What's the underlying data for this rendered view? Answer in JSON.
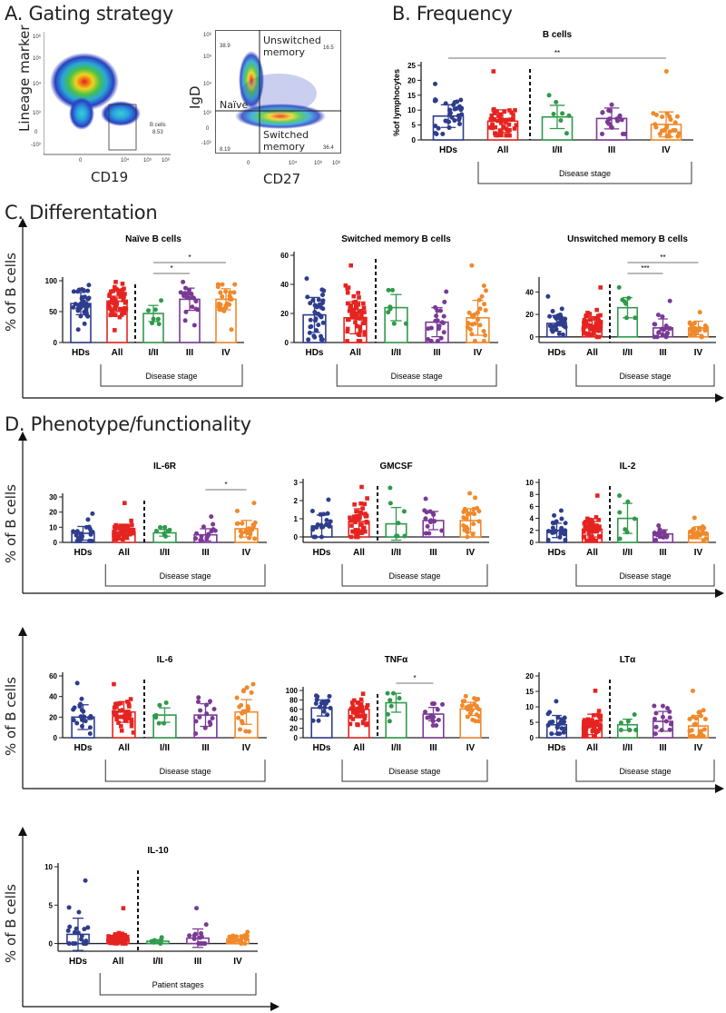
{
  "panel_a": {
    "title": "A. Gating strategy",
    "plot1": {
      "xlabel": "CD19",
      "ylabel": "Lineage marker",
      "gate_label": "B cells",
      "gate_value": "8.53",
      "xticks": [
        "0",
        "10⁴",
        "10⁵",
        "10⁶"
      ],
      "yticks": [
        "10⁶",
        "10⁵",
        "10⁴",
        "10³",
        "0",
        "-10³"
      ]
    },
    "plot2": {
      "xlabel": "CD27",
      "ylabel": "IgD",
      "naive_label": "Naïve",
      "ul_value": "38.9",
      "ur_label": "Unswitched memory",
      "ur_value": "16.5",
      "ll_value": "8.19",
      "lr_label": "Switched memory",
      "lr_value": "36.4",
      "xticks": [
        "0",
        "10⁴",
        "10⁵",
        "10⁶"
      ],
      "yticks": [
        "10⁶",
        "10⁵",
        "10⁴",
        "10³",
        "0",
        "-10³"
      ]
    }
  },
  "panel_b": {
    "title": "B. Frequency"
  },
  "panel_c": {
    "title": "C. Differentation",
    "ylabel": "% of B cells"
  },
  "panel_d": {
    "title": "D. Phenotype/functionality",
    "ylabel": "% of B cells"
  },
  "colors": {
    "HDs": "#2e3d8c",
    "All": "#e52421",
    "I/II": "#2f9a4b",
    "III": "#7a3a94",
    "IV": "#f0892b"
  },
  "chart_data": [
    {
      "id": "bcells",
      "type": "bar",
      "title": "B cells",
      "ylabel": "%of lymphocytes",
      "ylim": [
        0,
        25
      ],
      "yticks": [
        0,
        5,
        10,
        15,
        20,
        25
      ],
      "categories": [
        "HDs",
        "All",
        "I/II",
        "III",
        "IV"
      ],
      "means": [
        8,
        6.3,
        7.7,
        7.2,
        5.2
      ],
      "sd": [
        3.8,
        3.8,
        3.9,
        3.5,
        4.2
      ],
      "n": [
        34,
        50,
        7,
        20,
        25
      ],
      "min": [
        2,
        1.5,
        2.2,
        2,
        1.2
      ],
      "max": [
        18.8,
        23,
        15,
        11.8,
        23
      ],
      "bracket": "Disease stage",
      "significance": [
        {
          "from": 0,
          "to": 4,
          "label": "**"
        }
      ]
    },
    {
      "id": "naive",
      "type": "bar",
      "title": "Naïve B cells",
      "ylim": [
        0,
        100
      ],
      "yticks": [
        0,
        50,
        100
      ],
      "categories": [
        "HDs",
        "All",
        "I/II",
        "III",
        "IV"
      ],
      "means": [
        63,
        67,
        47,
        70,
        70
      ],
      "sd": [
        18,
        17,
        13,
        18,
        17
      ],
      "n": [
        34,
        55,
        7,
        20,
        26
      ],
      "min": [
        21,
        20,
        30,
        28,
        21
      ],
      "max": [
        93,
        98,
        68,
        98,
        94
      ],
      "bracket": "Disease stage",
      "significance": [
        {
          "from": 2,
          "to": 3,
          "label": "*"
        },
        {
          "from": 2,
          "to": 4,
          "label": "*"
        }
      ]
    },
    {
      "id": "switched",
      "type": "bar",
      "title": "Switched memory B cells",
      "ylim": [
        0,
        60
      ],
      "yticks": [
        0,
        20,
        40,
        60
      ],
      "categories": [
        "HDs",
        "All",
        "I/II",
        "III",
        "IV"
      ],
      "means": [
        19,
        17,
        24,
        14,
        17
      ],
      "sd": [
        12,
        11,
        9,
        10,
        12
      ],
      "n": [
        34,
        55,
        7,
        20,
        26
      ],
      "min": [
        2,
        1,
        13,
        1,
        1
      ],
      "max": [
        44,
        53,
        36,
        35,
        53
      ],
      "bracket": "Disease stage",
      "significance": []
    },
    {
      "id": "unswitched",
      "type": "bar",
      "title": "Unswitched memory B cells",
      "ylim": [
        -5,
        50
      ],
      "yticks": [
        0,
        20,
        40
      ],
      "categories": [
        "HDs",
        "All",
        "I/II",
        "III",
        "IV"
      ],
      "means": [
        12,
        10,
        26,
        8,
        8
      ],
      "sd": [
        7,
        8,
        9,
        8,
        6
      ],
      "n": [
        34,
        55,
        7,
        20,
        26
      ],
      "min": [
        2,
        0,
        17,
        0,
        0
      ],
      "max": [
        36,
        44,
        44,
        32,
        22
      ],
      "bracket": "Disease stage",
      "significance": [
        {
          "from": 2,
          "to": 3,
          "label": "***"
        },
        {
          "from": 2,
          "to": 4,
          "label": "**"
        }
      ]
    },
    {
      "id": "il6r",
      "type": "bar",
      "title": "IL-6R",
      "ylim": [
        0,
        30
      ],
      "yticks": [
        0,
        10,
        20,
        30
      ],
      "categories": [
        "HDs",
        "All",
        "I/II",
        "III",
        "IV"
      ],
      "means": [
        6,
        7,
        6.3,
        5,
        9
      ],
      "sd": [
        4.5,
        5,
        2.2,
        4,
        5.5
      ],
      "n": [
        22,
        45,
        7,
        14,
        22
      ],
      "min": [
        1,
        2,
        4,
        1.5,
        2.5
      ],
      "max": [
        19,
        26,
        10,
        17,
        26
      ],
      "bracket": "Disease stage",
      "significance": [
        {
          "from": 3,
          "to": 4,
          "label": "*"
        }
      ]
    },
    {
      "id": "gmcsf",
      "type": "bar",
      "title": "GMCSF",
      "ylim": [
        -0.3,
        3
      ],
      "yticks": [
        0,
        1,
        2,
        3
      ],
      "categories": [
        "HDs",
        "All",
        "I/II",
        "III",
        "IV"
      ],
      "means": [
        0.6,
        0.85,
        0.72,
        0.9,
        0.9
      ],
      "sd": [
        0.6,
        0.7,
        0.9,
        0.5,
        0.65
      ],
      "n": [
        22,
        45,
        7,
        14,
        24
      ],
      "min": [
        0,
        0,
        0.05,
        0.2,
        0
      ],
      "max": [
        2.05,
        2.75,
        2.7,
        2.1,
        2.4
      ],
      "bracket": "Disease stage",
      "significance": []
    },
    {
      "id": "il2",
      "type": "bar",
      "title": "IL-2",
      "ylim": [
        0,
        10
      ],
      "yticks": [
        0,
        2,
        4,
        6,
        8,
        10
      ],
      "categories": [
        "HDs",
        "All",
        "I/II",
        "III",
        "IV"
      ],
      "means": [
        2,
        2.2,
        4,
        1.4,
        1.6
      ],
      "sd": [
        1.2,
        1.3,
        2.5,
        0.7,
        1
      ],
      "n": [
        22,
        45,
        7,
        14,
        24
      ],
      "min": [
        0.4,
        0.3,
        0.6,
        0.4,
        0.3
      ],
      "max": [
        5.3,
        7.8,
        7.8,
        2.8,
        4.1
      ],
      "bracket": "Disease stage",
      "significance": []
    },
    {
      "id": "il6",
      "type": "bar",
      "title": "IL-6",
      "ylim": [
        0,
        60
      ],
      "yticks": [
        0,
        20,
        40,
        60
      ],
      "categories": [
        "HDs",
        "All",
        "I/II",
        "III",
        "IV"
      ],
      "means": [
        20,
        25,
        22,
        22,
        25
      ],
      "sd": [
        12,
        10,
        7,
        11,
        12
      ],
      "n": [
        20,
        42,
        7,
        14,
        22
      ],
      "min": [
        4,
        5,
        14,
        4,
        6
      ],
      "max": [
        53,
        52,
        34,
        39,
        52
      ],
      "bracket": "Disease stage",
      "significance": []
    },
    {
      "id": "tnfa",
      "type": "bar",
      "title": "TNFα",
      "ylim": [
        0,
        100
      ],
      "yticks": [
        0,
        20,
        40,
        60,
        80,
        100
      ],
      "categories": [
        "HDs",
        "All",
        "I/II",
        "III",
        "IV"
      ],
      "means": [
        63,
        60,
        74,
        50,
        61
      ],
      "sd": [
        17,
        17,
        20,
        14,
        14
      ],
      "n": [
        20,
        45,
        7,
        14,
        24
      ],
      "min": [
        36,
        27,
        35,
        26,
        35
      ],
      "max": [
        89,
        93,
        94,
        72,
        88
      ],
      "bracket": "Disease stage",
      "significance": [
        {
          "from": 2,
          "to": 3,
          "label": "*"
        }
      ]
    },
    {
      "id": "lta",
      "type": "bar",
      "title": "LTα",
      "ylim": [
        0,
        20
      ],
      "yticks": [
        0,
        5,
        10,
        15,
        20
      ],
      "categories": [
        "HDs",
        "All",
        "I/II",
        "III",
        "IV"
      ],
      "means": [
        4.2,
        4.3,
        4.2,
        5.3,
        3.8
      ],
      "sd": [
        3,
        3.3,
        1.8,
        3.2,
        3.4
      ],
      "n": [
        22,
        45,
        7,
        14,
        22
      ],
      "min": [
        1.3,
        0.5,
        2.5,
        1.3,
        0.5
      ],
      "max": [
        11.8,
        15.2,
        7.5,
        10.3,
        15.2
      ],
      "bracket": "Disease stage",
      "significance": []
    },
    {
      "id": "il10",
      "type": "bar",
      "title": "IL-10",
      "ylim": [
        -1,
        10
      ],
      "yticks": [
        0,
        5,
        10
      ],
      "categories": [
        "HDs",
        "All",
        "I/II",
        "III",
        "IV"
      ],
      "means": [
        1.2,
        0.6,
        0.3,
        0.7,
        0.6
      ],
      "sd": [
        2.1,
        0.5,
        0.2,
        1.2,
        0.4
      ],
      "n": [
        20,
        45,
        7,
        14,
        24
      ],
      "min": [
        0,
        0,
        0,
        0,
        0
      ],
      "max": [
        8.2,
        4.6,
        0.8,
        4.6,
        1.5
      ],
      "bracket": "Patient stages",
      "significance": []
    }
  ]
}
